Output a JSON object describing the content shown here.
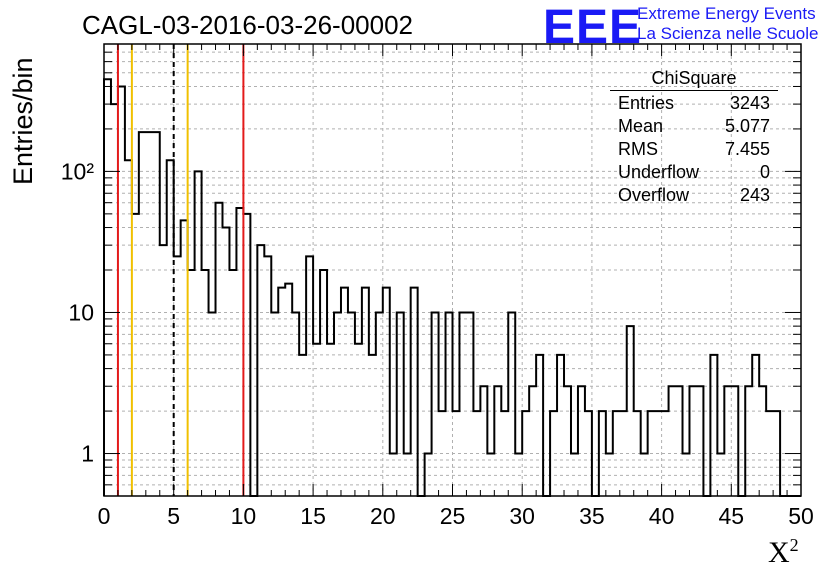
{
  "title": "CAGL-03-2016-03-26-00002",
  "logo": {
    "mark": "EEE",
    "line1": "Extreme Energy Events",
    "line2": "La Scienza nelle Scuole"
  },
  "stats": {
    "title": "ChiSquare",
    "rows": [
      {
        "label": "Entries",
        "value": "3243"
      },
      {
        "label": "Mean",
        "value": "5.077"
      },
      {
        "label": "RMS",
        "value": "7.455"
      },
      {
        "label": "Underflow",
        "value": "0"
      },
      {
        "label": "Overflow",
        "value": "243"
      }
    ]
  },
  "chart_data": {
    "type": "bar",
    "style": "step-histogram",
    "title": "CAGL-03-2016-03-26-00002",
    "xlabel": "X²",
    "ylabel": "Entries/bin",
    "xlim": [
      0,
      50
    ],
    "ylim": [
      0.5,
      800
    ],
    "yscale": "log",
    "grid": true,
    "x_ticks": [
      "0",
      "5",
      "10",
      "15",
      "20",
      "25",
      "30",
      "35",
      "40",
      "45",
      "50"
    ],
    "y_ticks": [
      {
        "label": "1",
        "value": 1
      },
      {
        "label": "10",
        "value": 10
      },
      {
        "label": "10²",
        "value": 100
      }
    ],
    "bin_width": 0.5,
    "bin_edges_start": 0,
    "values": [
      450,
      300,
      400,
      120,
      50,
      190,
      190,
      190,
      30,
      120,
      25,
      45,
      20,
      100,
      20,
      10,
      60,
      40,
      20,
      55,
      50,
      0,
      30,
      25,
      10,
      15,
      16,
      10,
      5,
      25,
      6,
      20,
      6,
      10,
      15,
      10,
      6,
      15,
      5,
      10,
      15,
      1,
      10,
      1,
      15,
      0,
      1,
      10,
      2,
      10,
      2,
      10,
      10,
      2,
      3,
      1,
      3,
      2,
      10,
      1,
      2,
      3,
      5,
      0,
      2,
      5,
      3,
      1,
      3,
      2,
      0,
      2,
      1,
      2,
      2,
      8,
      2,
      1,
      2,
      2,
      2,
      3,
      3,
      1,
      3,
      3,
      0,
      5,
      1,
      3,
      3,
      0,
      3,
      5,
      3,
      2,
      2,
      0,
      0,
      0
    ],
    "reference_lines": [
      {
        "x": 1.0,
        "color": "#e31a1a",
        "style": "solid"
      },
      {
        "x": 2.0,
        "color": "#f0c000",
        "style": "solid"
      },
      {
        "x": 5.0,
        "color": "#000000",
        "style": "dashed"
      },
      {
        "x": 6.0,
        "color": "#f0c000",
        "style": "solid"
      },
      {
        "x": 10.0,
        "color": "#e31a1a",
        "style": "solid"
      }
    ],
    "legend": "top-right stats box"
  }
}
